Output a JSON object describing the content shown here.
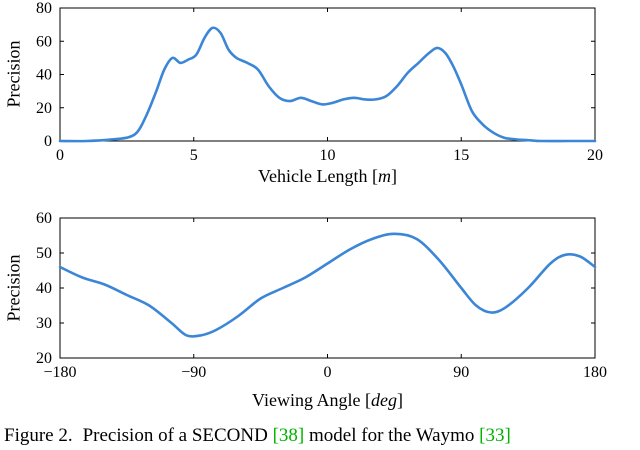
{
  "figure_caption": {
    "label": "Figure 2.",
    "segment1": "Precision of a SECOND ",
    "citation1": "[38]",
    "segment2": " model for the Waymo ",
    "citation2": "[33]"
  },
  "colors": {
    "line": "#3b86d6",
    "citation": "#00b300",
    "axis": "#000000"
  },
  "chart_data": [
    {
      "type": "line",
      "title": "",
      "ylabel": "Precision",
      "xlabel_pre": "Vehicle Length [",
      "xlabel_unit": "m",
      "xlabel_post": "]",
      "xlim": [
        0,
        20
      ],
      "ylim": [
        0,
        80
      ],
      "xticks": [
        0,
        5,
        10,
        15,
        20
      ],
      "yticks": [
        0,
        20,
        40,
        60,
        80
      ],
      "grid": false,
      "legend": "none",
      "x": [
        0,
        1,
        2,
        2.5,
        2.8,
        3.0,
        3.3,
        3.6,
        3.9,
        4.2,
        4.5,
        4.8,
        5.1,
        5.4,
        5.7,
        6.0,
        6.3,
        6.6,
        7.0,
        7.4,
        7.8,
        8.2,
        8.6,
        9.0,
        9.4,
        9.8,
        10.2,
        10.6,
        11.0,
        11.4,
        11.8,
        12.2,
        12.6,
        13.0,
        13.4,
        13.8,
        14.1,
        14.4,
        14.7,
        15.0,
        15.4,
        15.8,
        16.2,
        16.6,
        17.0,
        17.5,
        18.0,
        19.0,
        20.0
      ],
      "y": [
        0,
        0,
        1,
        2,
        4,
        8,
        18,
        30,
        43,
        50,
        47,
        49,
        52,
        62,
        68,
        65,
        55,
        50,
        47,
        43,
        33,
        26,
        24,
        26,
        24,
        22,
        23,
        25,
        26,
        25,
        25,
        27,
        33,
        41,
        47,
        53,
        56,
        53,
        45,
        34,
        18,
        10,
        5,
        2,
        1,
        0.5,
        0,
        0,
        0
      ]
    },
    {
      "type": "line",
      "title": "",
      "ylabel": "Precision",
      "xlabel_pre": "Viewing Angle [",
      "xlabel_unit": "deg",
      "xlabel_post": "]",
      "xlim": [
        -180,
        180
      ],
      "ylim": [
        20,
        60
      ],
      "xticks": [
        -180,
        -90,
        0,
        90,
        180
      ],
      "yticks": [
        20,
        30,
        40,
        50,
        60
      ],
      "grid": false,
      "legend": "none",
      "x": [
        -180,
        -165,
        -150,
        -135,
        -120,
        -105,
        -95,
        -85,
        -75,
        -60,
        -45,
        -30,
        -15,
        0,
        15,
        30,
        45,
        60,
        75,
        90,
        100,
        110,
        120,
        135,
        150,
        160,
        170,
        180
      ],
      "y": [
        46,
        43,
        41,
        38,
        35,
        30,
        26.5,
        26.5,
        28,
        32,
        37,
        40,
        43,
        47,
        51,
        54,
        55.5,
        54,
        48,
        40,
        35,
        33,
        34.5,
        40,
        47,
        49.5,
        49,
        46
      ]
    }
  ]
}
